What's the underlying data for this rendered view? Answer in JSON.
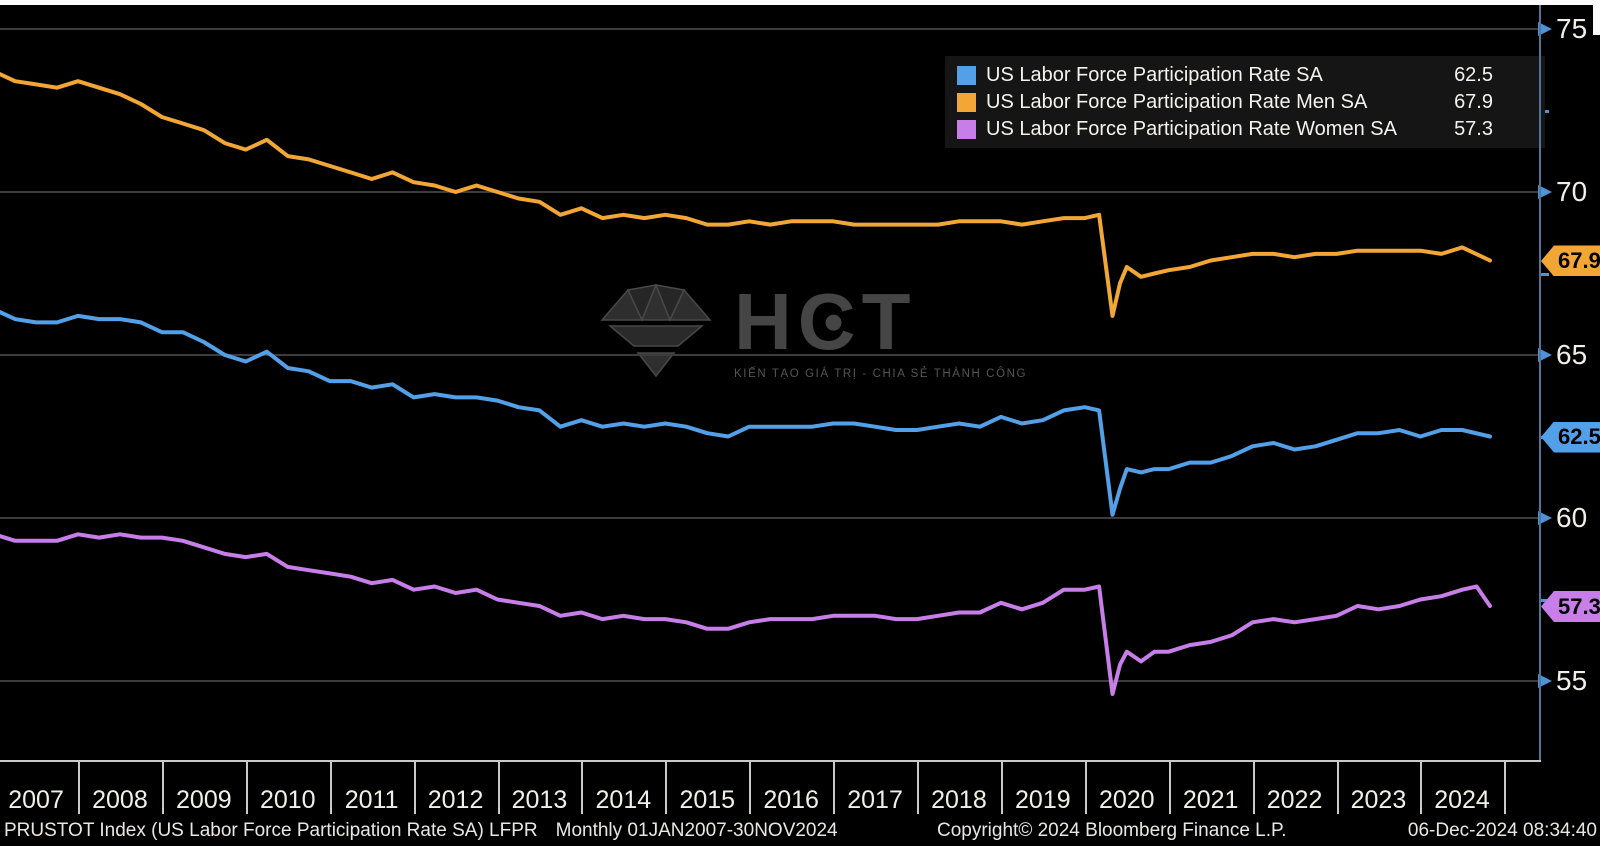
{
  "chart_data": {
    "type": "line",
    "grid": true,
    "legend_position": "top-right",
    "x_axis": {
      "years": [
        "2007",
        "2008",
        "2009",
        "2010",
        "2011",
        "2012",
        "2013",
        "2014",
        "2015",
        "2016",
        "2017",
        "2018",
        "2019",
        "2020",
        "2021",
        "2022",
        "2023",
        "2024"
      ]
    },
    "y_axis": {
      "ticks": [
        75,
        70,
        65,
        60,
        55
      ],
      "minor_ticks": [
        72.5,
        67.5,
        62.5,
        57.5
      ],
      "range": [
        52.5,
        75.9
      ]
    },
    "series": [
      {
        "name": "US Labor Force Participation Rate SA",
        "short": "total",
        "color": "#53a0e8",
        "last_value": 62.5,
        "points": [
          [
            2007,
            66.4
          ],
          [
            2007.25,
            66.1
          ],
          [
            2007.5,
            66.0
          ],
          [
            2007.75,
            66.0
          ],
          [
            2008,
            66.2
          ],
          [
            2008.25,
            66.1
          ],
          [
            2008.5,
            66.1
          ],
          [
            2008.75,
            66.0
          ],
          [
            2009,
            65.7
          ],
          [
            2009.25,
            65.7
          ],
          [
            2009.5,
            65.4
          ],
          [
            2009.75,
            65.0
          ],
          [
            2010,
            64.8
          ],
          [
            2010.25,
            65.1
          ],
          [
            2010.5,
            64.6
          ],
          [
            2010.75,
            64.5
          ],
          [
            2011,
            64.2
          ],
          [
            2011.25,
            64.2
          ],
          [
            2011.5,
            64.0
          ],
          [
            2011.75,
            64.1
          ],
          [
            2012,
            63.7
          ],
          [
            2012.25,
            63.8
          ],
          [
            2012.5,
            63.7
          ],
          [
            2012.75,
            63.7
          ],
          [
            2013,
            63.6
          ],
          [
            2013.25,
            63.4
          ],
          [
            2013.5,
            63.3
          ],
          [
            2013.75,
            62.8
          ],
          [
            2014,
            63.0
          ],
          [
            2014.25,
            62.8
          ],
          [
            2014.5,
            62.9
          ],
          [
            2014.75,
            62.8
          ],
          [
            2015,
            62.9
          ],
          [
            2015.25,
            62.8
          ],
          [
            2015.5,
            62.6
          ],
          [
            2015.75,
            62.5
          ],
          [
            2016,
            62.8
          ],
          [
            2016.25,
            62.8
          ],
          [
            2016.5,
            62.8
          ],
          [
            2016.75,
            62.8
          ],
          [
            2017,
            62.9
          ],
          [
            2017.25,
            62.9
          ],
          [
            2017.5,
            62.8
          ],
          [
            2017.75,
            62.7
          ],
          [
            2018,
            62.7
          ],
          [
            2018.25,
            62.8
          ],
          [
            2018.5,
            62.9
          ],
          [
            2018.75,
            62.8
          ],
          [
            2019,
            63.1
          ],
          [
            2019.25,
            62.9
          ],
          [
            2019.5,
            63.0
          ],
          [
            2019.75,
            63.3
          ],
          [
            2020,
            63.4
          ],
          [
            2020.17,
            63.3
          ],
          [
            2020.33,
            60.1
          ],
          [
            2020.42,
            60.9
          ],
          [
            2020.5,
            61.5
          ],
          [
            2020.67,
            61.4
          ],
          [
            2020.83,
            61.5
          ],
          [
            2021,
            61.5
          ],
          [
            2021.25,
            61.7
          ],
          [
            2021.5,
            61.7
          ],
          [
            2021.75,
            61.9
          ],
          [
            2022,
            62.2
          ],
          [
            2022.25,
            62.3
          ],
          [
            2022.5,
            62.1
          ],
          [
            2022.75,
            62.2
          ],
          [
            2023,
            62.4
          ],
          [
            2023.25,
            62.6
          ],
          [
            2023.5,
            62.6
          ],
          [
            2023.75,
            62.7
          ],
          [
            2024,
            62.5
          ],
          [
            2024.25,
            62.7
          ],
          [
            2024.5,
            62.7
          ],
          [
            2024.83,
            62.5
          ]
        ]
      },
      {
        "name": "US Labor Force Participation Rate Men SA",
        "short": "men",
        "color": "#f2a636",
        "last_value": 67.9,
        "points": [
          [
            2007,
            73.7
          ],
          [
            2007.25,
            73.4
          ],
          [
            2007.5,
            73.3
          ],
          [
            2007.75,
            73.2
          ],
          [
            2008,
            73.4
          ],
          [
            2008.25,
            73.2
          ],
          [
            2008.5,
            73.0
          ],
          [
            2008.75,
            72.7
          ],
          [
            2009,
            72.3
          ],
          [
            2009.25,
            72.1
          ],
          [
            2009.5,
            71.9
          ],
          [
            2009.75,
            71.5
          ],
          [
            2010,
            71.3
          ],
          [
            2010.25,
            71.6
          ],
          [
            2010.5,
            71.1
          ],
          [
            2010.75,
            71.0
          ],
          [
            2011,
            70.8
          ],
          [
            2011.25,
            70.6
          ],
          [
            2011.5,
            70.4
          ],
          [
            2011.75,
            70.6
          ],
          [
            2012,
            70.3
          ],
          [
            2012.25,
            70.2
          ],
          [
            2012.5,
            70.0
          ],
          [
            2012.75,
            70.2
          ],
          [
            2013,
            70.0
          ],
          [
            2013.25,
            69.8
          ],
          [
            2013.5,
            69.7
          ],
          [
            2013.75,
            69.3
          ],
          [
            2014,
            69.5
          ],
          [
            2014.25,
            69.2
          ],
          [
            2014.5,
            69.3
          ],
          [
            2014.75,
            69.2
          ],
          [
            2015,
            69.3
          ],
          [
            2015.25,
            69.2
          ],
          [
            2015.5,
            69.0
          ],
          [
            2015.75,
            69.0
          ],
          [
            2016,
            69.1
          ],
          [
            2016.25,
            69.0
          ],
          [
            2016.5,
            69.1
          ],
          [
            2016.75,
            69.1
          ],
          [
            2017,
            69.1
          ],
          [
            2017.25,
            69.0
          ],
          [
            2017.5,
            69.0
          ],
          [
            2017.75,
            69.0
          ],
          [
            2018,
            69.0
          ],
          [
            2018.25,
            69.0
          ],
          [
            2018.5,
            69.1
          ],
          [
            2018.75,
            69.1
          ],
          [
            2019,
            69.1
          ],
          [
            2019.25,
            69.0
          ],
          [
            2019.5,
            69.1
          ],
          [
            2019.75,
            69.2
          ],
          [
            2020,
            69.2
          ],
          [
            2020.17,
            69.3
          ],
          [
            2020.33,
            66.2
          ],
          [
            2020.42,
            67.2
          ],
          [
            2020.5,
            67.7
          ],
          [
            2020.67,
            67.4
          ],
          [
            2020.83,
            67.5
          ],
          [
            2021,
            67.6
          ],
          [
            2021.25,
            67.7
          ],
          [
            2021.5,
            67.9
          ],
          [
            2021.75,
            68.0
          ],
          [
            2022,
            68.1
          ],
          [
            2022.25,
            68.1
          ],
          [
            2022.5,
            68.0
          ],
          [
            2022.75,
            68.1
          ],
          [
            2023,
            68.1
          ],
          [
            2023.25,
            68.2
          ],
          [
            2023.5,
            68.2
          ],
          [
            2023.75,
            68.2
          ],
          [
            2024,
            68.2
          ],
          [
            2024.25,
            68.1
          ],
          [
            2024.5,
            68.3
          ],
          [
            2024.83,
            67.9
          ]
        ]
      },
      {
        "name": "US Labor Force Participation Rate Women SA",
        "short": "women",
        "color": "#c87ee8",
        "last_value": 57.3,
        "points": [
          [
            2007,
            59.5
          ],
          [
            2007.25,
            59.3
          ],
          [
            2007.5,
            59.3
          ],
          [
            2007.75,
            59.3
          ],
          [
            2008,
            59.5
          ],
          [
            2008.25,
            59.4
          ],
          [
            2008.5,
            59.5
          ],
          [
            2008.75,
            59.4
          ],
          [
            2009,
            59.4
          ],
          [
            2009.25,
            59.3
          ],
          [
            2009.5,
            59.1
          ],
          [
            2009.75,
            58.9
          ],
          [
            2010,
            58.8
          ],
          [
            2010.25,
            58.9
          ],
          [
            2010.5,
            58.5
          ],
          [
            2010.75,
            58.4
          ],
          [
            2011,
            58.3
          ],
          [
            2011.25,
            58.2
          ],
          [
            2011.5,
            58.0
          ],
          [
            2011.75,
            58.1
          ],
          [
            2012,
            57.8
          ],
          [
            2012.25,
            57.9
          ],
          [
            2012.5,
            57.7
          ],
          [
            2012.75,
            57.8
          ],
          [
            2013,
            57.5
          ],
          [
            2013.25,
            57.4
          ],
          [
            2013.5,
            57.3
          ],
          [
            2013.75,
            57.0
          ],
          [
            2014,
            57.1
          ],
          [
            2014.25,
            56.9
          ],
          [
            2014.5,
            57.0
          ],
          [
            2014.75,
            56.9
          ],
          [
            2015,
            56.9
          ],
          [
            2015.25,
            56.8
          ],
          [
            2015.5,
            56.6
          ],
          [
            2015.75,
            56.6
          ],
          [
            2016,
            56.8
          ],
          [
            2016.25,
            56.9
          ],
          [
            2016.5,
            56.9
          ],
          [
            2016.75,
            56.9
          ],
          [
            2017,
            57.0
          ],
          [
            2017.25,
            57.0
          ],
          [
            2017.5,
            57.0
          ],
          [
            2017.75,
            56.9
          ],
          [
            2018,
            56.9
          ],
          [
            2018.25,
            57.0
          ],
          [
            2018.5,
            57.1
          ],
          [
            2018.75,
            57.1
          ],
          [
            2019,
            57.4
          ],
          [
            2019.25,
            57.2
          ],
          [
            2019.5,
            57.4
          ],
          [
            2019.75,
            57.8
          ],
          [
            2020,
            57.8
          ],
          [
            2020.17,
            57.9
          ],
          [
            2020.33,
            54.6
          ],
          [
            2020.42,
            55.5
          ],
          [
            2020.5,
            55.9
          ],
          [
            2020.67,
            55.6
          ],
          [
            2020.83,
            55.9
          ],
          [
            2021,
            55.9
          ],
          [
            2021.25,
            56.1
          ],
          [
            2021.5,
            56.2
          ],
          [
            2021.75,
            56.4
          ],
          [
            2022,
            56.8
          ],
          [
            2022.25,
            56.9
          ],
          [
            2022.5,
            56.8
          ],
          [
            2022.75,
            56.9
          ],
          [
            2023,
            57.0
          ],
          [
            2023.25,
            57.3
          ],
          [
            2023.5,
            57.2
          ],
          [
            2023.75,
            57.3
          ],
          [
            2024,
            57.5
          ],
          [
            2024.25,
            57.6
          ],
          [
            2024.5,
            57.8
          ],
          [
            2024.67,
            57.9
          ],
          [
            2024.83,
            57.3
          ]
        ]
      }
    ]
  },
  "watermark": {
    "name": "HCT",
    "tagline": "KIẾN TẠO GIÁ TRỊ - CHIA SẺ THÀNH CÔNG"
  },
  "footer": {
    "security": "PRUSTOT Index (US Labor Force Participation Rate SA) LFPR",
    "period": "Monthly 01JAN2007-30NOV2024",
    "copyright": "Copyright© 2024 Bloomberg Finance L.P.",
    "datetime": "06-Dec-2024 08:34:40"
  }
}
